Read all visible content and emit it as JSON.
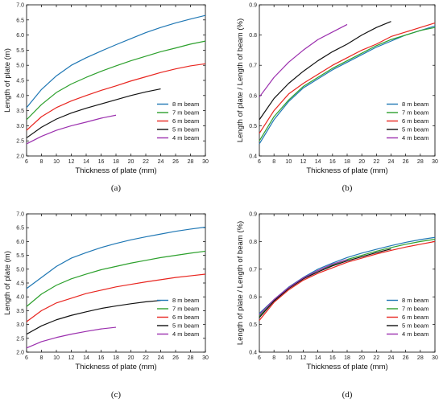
{
  "chart_data": [
    {
      "type": "line",
      "panel_label": "(a)",
      "xlabel": "Thickness of plate (mm)",
      "ylabel": "Length of plate (m)",
      "xlim": [
        6,
        30
      ],
      "ylim": [
        2.0,
        7.0
      ],
      "xticks": [
        "6",
        "8",
        "10",
        "12",
        "14",
        "16",
        "18",
        "20",
        "22",
        "24",
        "26",
        "28",
        "30"
      ],
      "yticks": [
        "2.0",
        "2.5",
        "3.0",
        "3.5",
        "4.0",
        "4.5",
        "5.0",
        "5.5",
        "6.0",
        "6.5",
        "7.0"
      ],
      "legend_position": "lower-right",
      "series": [
        {
          "name": "8 m beam",
          "color": "#1f77b4",
          "x": [
            6,
            8,
            10,
            12,
            14,
            16,
            18,
            20,
            22,
            24,
            26,
            28,
            30
          ],
          "y": [
            3.6,
            4.2,
            4.65,
            5.0,
            5.25,
            5.47,
            5.68,
            5.88,
            6.08,
            6.25,
            6.4,
            6.53,
            6.65
          ]
        },
        {
          "name": "7 m beam",
          "color": "#2ca02c",
          "x": [
            6,
            8,
            10,
            12,
            14,
            16,
            18,
            20,
            22,
            24,
            26,
            28,
            30
          ],
          "y": [
            3.2,
            3.7,
            4.1,
            4.38,
            4.6,
            4.8,
            4.98,
            5.15,
            5.3,
            5.45,
            5.57,
            5.7,
            5.8
          ]
        },
        {
          "name": "6 m beam",
          "color": "#e8251f",
          "x": [
            6,
            8,
            10,
            12,
            14,
            16,
            18,
            20,
            22,
            24,
            26,
            28,
            30
          ],
          "y": [
            2.85,
            3.3,
            3.6,
            3.82,
            4.0,
            4.17,
            4.32,
            4.48,
            4.62,
            4.76,
            4.88,
            4.98,
            5.05
          ]
        },
        {
          "name": "5 m beam",
          "color": "#111111",
          "x": [
            6,
            8,
            10,
            12,
            14,
            16,
            18,
            20,
            22,
            24
          ],
          "y": [
            2.6,
            2.95,
            3.22,
            3.42,
            3.58,
            3.72,
            3.86,
            4.0,
            4.12,
            4.22
          ]
        },
        {
          "name": "4 m beam",
          "color": "#9b2fae",
          "x": [
            6,
            8,
            10,
            12,
            14,
            16,
            18
          ],
          "y": [
            2.4,
            2.65,
            2.85,
            3.0,
            3.12,
            3.25,
            3.35
          ]
        }
      ]
    },
    {
      "type": "line",
      "panel_label": "(b)",
      "xlabel": "Thickness of plate (mm)",
      "ylabel": "Length of plate / Length of beam (%)",
      "xlim": [
        6,
        30
      ],
      "ylim": [
        0.4,
        0.9
      ],
      "xticks": [
        "6",
        "8",
        "10",
        "12",
        "14",
        "16",
        "18",
        "20",
        "22",
        "24",
        "26",
        "28",
        "30"
      ],
      "yticks": [
        "0.4",
        "0.5",
        "0.6",
        "0.7",
        "0.8",
        "0.9"
      ],
      "legend_position": "lower-right",
      "series": [
        {
          "name": "8 m beam",
          "color": "#1f77b4",
          "x": [
            6,
            8,
            10,
            12,
            14,
            16,
            18,
            20,
            22,
            24,
            26,
            28,
            30
          ],
          "y": [
            0.44,
            0.52,
            0.58,
            0.625,
            0.655,
            0.685,
            0.71,
            0.735,
            0.76,
            0.78,
            0.8,
            0.815,
            0.83
          ]
        },
        {
          "name": "7 m beam",
          "color": "#2ca02c",
          "x": [
            6,
            8,
            10,
            12,
            14,
            16,
            18,
            20,
            22,
            24,
            26,
            28,
            30
          ],
          "y": [
            0.45,
            0.53,
            0.585,
            0.63,
            0.66,
            0.69,
            0.715,
            0.74,
            0.765,
            0.785,
            0.8,
            0.815,
            0.825
          ]
        },
        {
          "name": "6 m beam",
          "color": "#e8251f",
          "x": [
            6,
            8,
            10,
            12,
            14,
            16,
            18,
            20,
            22,
            24,
            26,
            28,
            30
          ],
          "y": [
            0.475,
            0.55,
            0.605,
            0.64,
            0.67,
            0.7,
            0.725,
            0.75,
            0.77,
            0.795,
            0.81,
            0.825,
            0.84
          ]
        },
        {
          "name": "5 m beam",
          "color": "#111111",
          "x": [
            6,
            8,
            10,
            12,
            14,
            16,
            18,
            20,
            22,
            24
          ],
          "y": [
            0.52,
            0.59,
            0.64,
            0.68,
            0.715,
            0.745,
            0.77,
            0.8,
            0.825,
            0.845
          ]
        },
        {
          "name": "4 m beam",
          "color": "#9b2fae",
          "x": [
            6,
            8,
            10,
            12,
            14,
            16,
            18
          ],
          "y": [
            0.595,
            0.66,
            0.71,
            0.75,
            0.785,
            0.81,
            0.835
          ]
        }
      ]
    },
    {
      "type": "line",
      "panel_label": "(c)",
      "xlabel": "Thickness of plate (mm)",
      "ylabel": "Length of plate (m)",
      "xlim": [
        6,
        30
      ],
      "ylim": [
        2.0,
        7.0
      ],
      "xticks": [
        "6",
        "8",
        "10",
        "12",
        "14",
        "16",
        "18",
        "20",
        "22",
        "24",
        "26",
        "28",
        "30"
      ],
      "yticks": [
        "2.0",
        "2.5",
        "3.0",
        "3.5",
        "4.0",
        "4.5",
        "5.0",
        "5.5",
        "6.0",
        "6.5",
        "7.0"
      ],
      "legend_position": "lower-right",
      "series": [
        {
          "name": "8 m beam",
          "color": "#1f77b4",
          "x": [
            6,
            8,
            10,
            12,
            14,
            16,
            18,
            20,
            22,
            24,
            26,
            28,
            30
          ],
          "y": [
            4.3,
            4.7,
            5.1,
            5.4,
            5.6,
            5.78,
            5.93,
            6.06,
            6.17,
            6.27,
            6.37,
            6.45,
            6.52
          ]
        },
        {
          "name": "7 m beam",
          "color": "#2ca02c",
          "x": [
            6,
            8,
            10,
            12,
            14,
            16,
            18,
            20,
            22,
            24,
            26,
            28,
            30
          ],
          "y": [
            3.65,
            4.1,
            4.42,
            4.65,
            4.82,
            4.98,
            5.1,
            5.22,
            5.32,
            5.42,
            5.5,
            5.58,
            5.65
          ]
        },
        {
          "name": "6 m beam",
          "color": "#e8251f",
          "x": [
            6,
            8,
            10,
            12,
            14,
            16,
            18,
            20,
            22,
            24,
            26,
            28,
            30
          ],
          "y": [
            3.1,
            3.5,
            3.78,
            3.95,
            4.12,
            4.24,
            4.36,
            4.45,
            4.54,
            4.62,
            4.7,
            4.76,
            4.82
          ]
        },
        {
          "name": "5 m beam",
          "color": "#111111",
          "x": [
            6,
            8,
            10,
            12,
            14,
            16,
            18,
            20,
            22,
            24
          ],
          "y": [
            2.65,
            2.95,
            3.17,
            3.33,
            3.46,
            3.58,
            3.67,
            3.75,
            3.82,
            3.87
          ]
        },
        {
          "name": "4 m beam",
          "color": "#9b2fae",
          "x": [
            6,
            8,
            10,
            12,
            14,
            16,
            18
          ],
          "y": [
            2.15,
            2.38,
            2.53,
            2.65,
            2.75,
            2.84,
            2.9
          ]
        }
      ]
    },
    {
      "type": "line",
      "panel_label": "(d)",
      "xlabel": "Thickness of plate (mm)",
      "ylabel": "Length of plate / Length of beam (%)",
      "xlim": [
        6,
        30
      ],
      "ylim": [
        0.4,
        0.9
      ],
      "xticks": [
        "6",
        "8",
        "10",
        "12",
        "14",
        "16",
        "18",
        "20",
        "22",
        "24",
        "26",
        "28",
        "30"
      ],
      "yticks": [
        "0.4",
        "0.5",
        "0.6",
        "0.7",
        "0.8",
        "0.9"
      ],
      "legend_position": "lower-right",
      "series": [
        {
          "name": "8 m beam",
          "color": "#1f77b4",
          "x": [
            6,
            8,
            10,
            12,
            14,
            16,
            18,
            20,
            22,
            24,
            26,
            28,
            30
          ],
          "y": [
            0.54,
            0.59,
            0.635,
            0.67,
            0.7,
            0.722,
            0.742,
            0.758,
            0.772,
            0.785,
            0.797,
            0.807,
            0.815
          ]
        },
        {
          "name": "7 m beam",
          "color": "#2ca02c",
          "x": [
            6,
            8,
            10,
            12,
            14,
            16,
            18,
            20,
            22,
            24,
            26,
            28,
            30
          ],
          "y": [
            0.53,
            0.585,
            0.63,
            0.665,
            0.695,
            0.715,
            0.735,
            0.75,
            0.765,
            0.778,
            0.79,
            0.8,
            0.808
          ]
        },
        {
          "name": "6 m beam",
          "color": "#e8251f",
          "x": [
            6,
            8,
            10,
            12,
            14,
            16,
            18,
            20,
            22,
            24,
            26,
            28,
            30
          ],
          "y": [
            0.515,
            0.58,
            0.625,
            0.66,
            0.685,
            0.705,
            0.725,
            0.74,
            0.755,
            0.768,
            0.78,
            0.79,
            0.8
          ]
        },
        {
          "name": "5 m beam",
          "color": "#111111",
          "x": [
            6,
            8,
            10,
            12,
            14,
            16,
            18,
            20,
            22,
            24
          ],
          "y": [
            0.525,
            0.585,
            0.63,
            0.665,
            0.69,
            0.712,
            0.73,
            0.745,
            0.76,
            0.773
          ]
        },
        {
          "name": "4 m beam",
          "color": "#9b2fae",
          "x": [
            6,
            8,
            10,
            12,
            14,
            16,
            18
          ],
          "y": [
            0.535,
            0.59,
            0.633,
            0.668,
            0.695,
            0.718,
            0.735
          ]
        }
      ]
    }
  ]
}
